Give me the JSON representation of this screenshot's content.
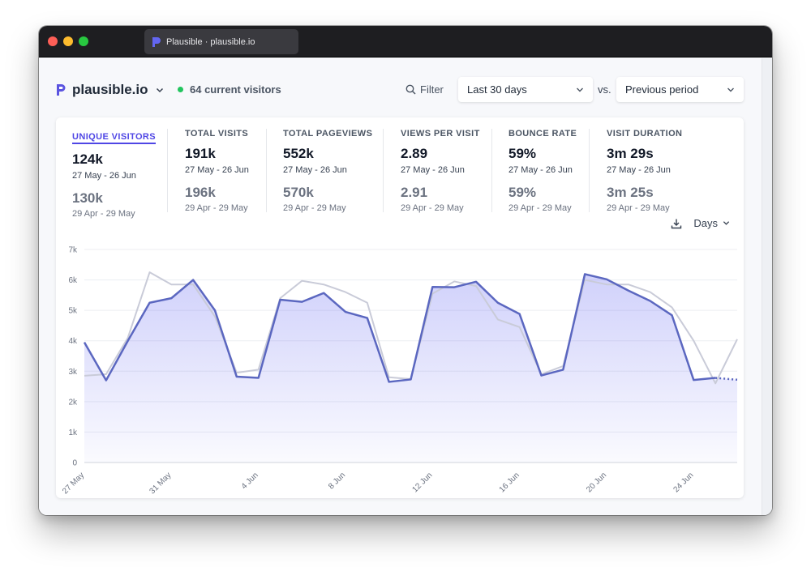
{
  "window": {
    "tab_title": "Plausible · plausible.io"
  },
  "header": {
    "site": "plausible.io",
    "realtime": "64 current visitors",
    "filter_label": "Filter",
    "period": "Last 30 days",
    "vs": "vs.",
    "comparison": "Previous period"
  },
  "metrics": [
    {
      "label": "UNIQUE VISITORS",
      "value": "124k",
      "range": "27 May - 26 Jun",
      "prev": "130k",
      "prev_range": "29 Apr - 29 May",
      "active": true
    },
    {
      "label": "TOTAL VISITS",
      "value": "191k",
      "range": "27 May - 26 Jun",
      "prev": "196k",
      "prev_range": "29 Apr - 29 May"
    },
    {
      "label": "TOTAL PAGEVIEWS",
      "value": "552k",
      "range": "27 May - 26 Jun",
      "prev": "570k",
      "prev_range": "29 Apr - 29 May"
    },
    {
      "label": "VIEWS PER VISIT",
      "value": "2.89",
      "range": "27 May - 26 Jun",
      "prev": "2.91",
      "prev_range": "29 Apr - 29 May"
    },
    {
      "label": "BOUNCE RATE",
      "value": "59%",
      "range": "27 May - 26 Jun",
      "prev": "59%",
      "prev_range": "29 Apr - 29 May"
    },
    {
      "label": "VISIT DURATION",
      "value": "3m 29s",
      "range": "27 May - 26 Jun",
      "prev": "3m 25s",
      "prev_range": "29 Apr - 29 May"
    }
  ],
  "chart_controls": {
    "interval": "Days",
    "download_icon": "download-icon"
  },
  "colors": {
    "current_line": "#5b67c0",
    "previous_line": "#c9cbd8",
    "accent": "#4f46e5",
    "live_dot": "#22c55e"
  },
  "chart_data": {
    "type": "line",
    "x": [
      "27 May",
      "28 May",
      "29 May",
      "30 May",
      "31 May",
      "1 Jun",
      "2 Jun",
      "3 Jun",
      "4 Jun",
      "5 Jun",
      "6 Jun",
      "7 Jun",
      "8 Jun",
      "9 Jun",
      "10 Jun",
      "11 Jun",
      "12 Jun",
      "13 Jun",
      "14 Jun",
      "15 Jun",
      "16 Jun",
      "17 Jun",
      "18 Jun",
      "19 Jun",
      "20 Jun",
      "21 Jun",
      "22 Jun",
      "23 Jun",
      "24 Jun",
      "25 Jun",
      "26 Jun"
    ],
    "tick_labels": [
      "27 May",
      "31 May",
      "4 Jun",
      "8 Jun",
      "12 Jun",
      "16 Jun",
      "20 Jun",
      "24 Jun"
    ],
    "yticks": [
      "0",
      "1k",
      "2k",
      "3k",
      "4k",
      "5k",
      "6k",
      "7k"
    ],
    "ylim": [
      0,
      7000
    ],
    "grid": true,
    "series": [
      {
        "values": [
          3950,
          2700,
          4000,
          5250,
          5400,
          6000,
          5000,
          2820,
          2780,
          5350,
          5280,
          5570,
          4950,
          4750,
          2650,
          2730,
          5770,
          5760,
          5940,
          5250,
          4880,
          2860,
          3050,
          6190,
          6020,
          5650,
          5310,
          4840,
          2710,
          2780,
          2720
        ],
        "dashed_last_segment": true
      },
      {
        "values": [
          2850,
          2900,
          4100,
          6250,
          5850,
          5850,
          4800,
          2950,
          3050,
          5400,
          5970,
          5850,
          5600,
          5250,
          2800,
          2740,
          5550,
          5950,
          5800,
          4700,
          4450,
          2900,
          3170,
          6000,
          5850,
          5850,
          5600,
          5100,
          4000,
          2600,
          4050
        ]
      }
    ]
  }
}
